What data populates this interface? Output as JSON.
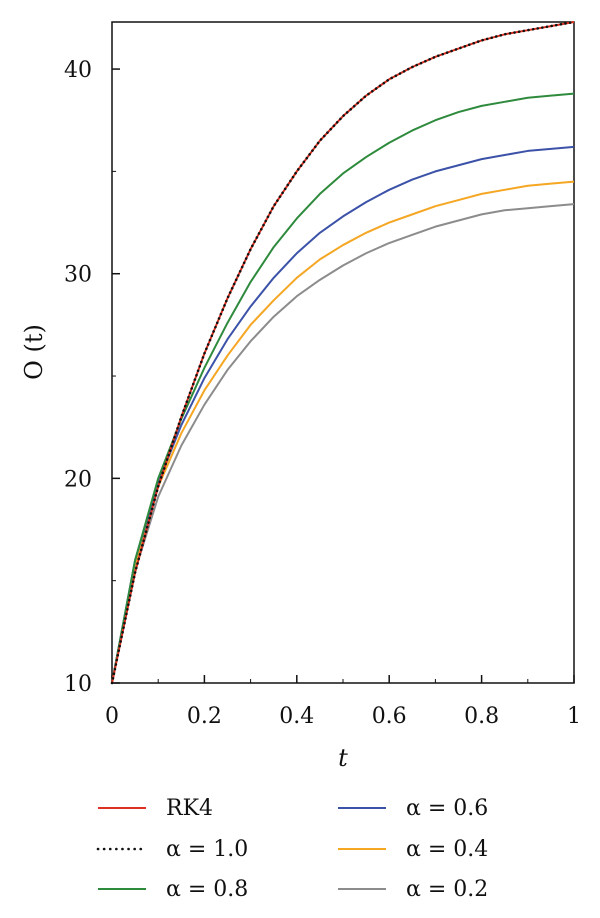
{
  "chart_data": {
    "type": "line",
    "xlabel": "t",
    "ylabel": "O (t)",
    "xlim": [
      0,
      1
    ],
    "ylim": [
      10,
      42.3
    ],
    "x_ticks": [
      "0",
      "0.2",
      "0.4",
      "0.6",
      "0.8",
      "1"
    ],
    "y_ticks": [
      "10",
      "20",
      "30",
      "40"
    ],
    "legend_position": "bottom",
    "series": [
      {
        "name": "RK4",
        "color": "#e03020",
        "style": "solid",
        "x": [
          0,
          0.05,
          0.1,
          0.15,
          0.2,
          0.25,
          0.3,
          0.35,
          0.4,
          0.45,
          0.5,
          0.55,
          0.6,
          0.65,
          0.7,
          0.75,
          0.8,
          0.85,
          0.9,
          0.95,
          1.0
        ],
        "y": [
          10.0,
          15.4,
          19.6,
          23.0,
          26.1,
          28.8,
          31.2,
          33.3,
          35.0,
          36.5,
          37.7,
          38.7,
          39.5,
          40.1,
          40.6,
          41.0,
          41.4,
          41.7,
          41.9,
          42.1,
          42.3
        ]
      },
      {
        "name": "α = 1.0",
        "color": "#111111",
        "style": "dotted",
        "x": [
          0,
          0.05,
          0.1,
          0.15,
          0.2,
          0.25,
          0.3,
          0.35,
          0.4,
          0.45,
          0.5,
          0.55,
          0.6,
          0.65,
          0.7,
          0.75,
          0.8,
          0.85,
          0.9,
          0.95,
          1.0
        ],
        "y": [
          10.0,
          15.4,
          19.6,
          23.0,
          26.1,
          28.8,
          31.2,
          33.3,
          35.0,
          36.5,
          37.7,
          38.7,
          39.5,
          40.1,
          40.6,
          41.0,
          41.4,
          41.7,
          41.9,
          42.1,
          42.3
        ]
      },
      {
        "name": "α = 0.8",
        "color": "#2e8a3c",
        "style": "solid",
        "x": [
          0,
          0.05,
          0.1,
          0.15,
          0.2,
          0.25,
          0.3,
          0.35,
          0.4,
          0.45,
          0.5,
          0.55,
          0.6,
          0.65,
          0.7,
          0.75,
          0.8,
          0.85,
          0.9,
          0.95,
          1.0
        ],
        "y": [
          10.0,
          16.0,
          20.0,
          22.9,
          25.4,
          27.6,
          29.6,
          31.3,
          32.7,
          33.9,
          34.9,
          35.7,
          36.4,
          37.0,
          37.5,
          37.9,
          38.2,
          38.4,
          38.6,
          38.7,
          38.8
        ]
      },
      {
        "name": "α = 0.6",
        "color": "#3b52a8",
        "style": "solid",
        "x": [
          0,
          0.05,
          0.1,
          0.15,
          0.2,
          0.25,
          0.3,
          0.35,
          0.4,
          0.45,
          0.5,
          0.55,
          0.6,
          0.65,
          0.7,
          0.75,
          0.8,
          0.85,
          0.9,
          0.95,
          1.0
        ],
        "y": [
          10.0,
          16.0,
          19.8,
          22.6,
          24.9,
          26.8,
          28.4,
          29.8,
          31.0,
          32.0,
          32.8,
          33.5,
          34.1,
          34.6,
          35.0,
          35.3,
          35.6,
          35.8,
          36.0,
          36.1,
          36.2
        ]
      },
      {
        "name": "α = 0.4",
        "color": "#f5a623",
        "style": "solid",
        "x": [
          0,
          0.05,
          0.1,
          0.15,
          0.2,
          0.25,
          0.3,
          0.35,
          0.4,
          0.45,
          0.5,
          0.55,
          0.6,
          0.65,
          0.7,
          0.75,
          0.8,
          0.85,
          0.9,
          0.95,
          1.0
        ],
        "y": [
          10.0,
          15.8,
          19.6,
          22.2,
          24.3,
          26.0,
          27.5,
          28.7,
          29.8,
          30.7,
          31.4,
          32.0,
          32.5,
          32.9,
          33.3,
          33.6,
          33.9,
          34.1,
          34.3,
          34.4,
          34.5
        ]
      },
      {
        "name": "α = 0.2",
        "color": "#8c8c8c",
        "style": "solid",
        "x": [
          0,
          0.05,
          0.1,
          0.15,
          0.2,
          0.25,
          0.3,
          0.35,
          0.4,
          0.45,
          0.5,
          0.55,
          0.6,
          0.65,
          0.7,
          0.75,
          0.8,
          0.85,
          0.9,
          0.95,
          1.0
        ],
        "y": [
          10.0,
          15.5,
          19.1,
          21.6,
          23.6,
          25.3,
          26.7,
          27.9,
          28.9,
          29.7,
          30.4,
          31.0,
          31.5,
          31.9,
          32.3,
          32.6,
          32.9,
          33.1,
          33.2,
          33.3,
          33.4
        ]
      }
    ]
  }
}
